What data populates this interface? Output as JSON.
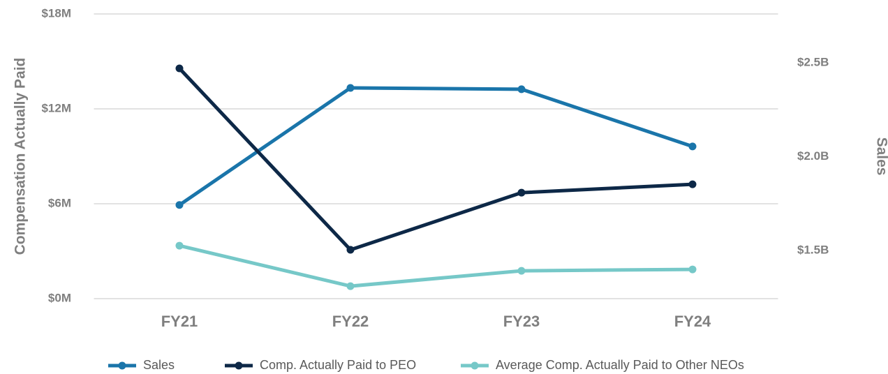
{
  "chart_data": {
    "type": "line",
    "y_axis_label": "Compensation Actually Paid",
    "y2_axis_label": "Sales",
    "categories": [
      "FY21",
      "FY22",
      "FY23",
      "FY24"
    ],
    "series": [
      {
        "name": "Sales",
        "color": "#1a75aa",
        "axis": "y2",
        "values": [
          1.742,
          2.366,
          2.359,
          2.054
        ]
      },
      {
        "name": "Comp. Actually Paid to PEO",
        "color": "#0d2847",
        "values": [
          14.56,
          3.09,
          6.7,
          7.23
        ]
      },
      {
        "name": "Average Comp. Actually Paid to Other NEOs",
        "color": "#76c8c8",
        "values": [
          3.35,
          0.79,
          1.76,
          1.85
        ]
      }
    ],
    "ylim": [
      0,
      18
    ],
    "yticks": [
      {
        "value": 0,
        "label": "$0M"
      },
      {
        "value": 6,
        "label": "$6M"
      },
      {
        "value": 12,
        "label": "$12M"
      },
      {
        "value": 18,
        "label": "$18M"
      }
    ],
    "y2lim": [
      1.243,
      2.76
    ],
    "y2ticks": [
      {
        "value": 1.5,
        "label": "$1.5B"
      },
      {
        "value": 2.0,
        "label": "$2.0B"
      },
      {
        "value": 2.5,
        "label": "$2.5B"
      }
    ],
    "grid": true,
    "legend": "bottom"
  }
}
